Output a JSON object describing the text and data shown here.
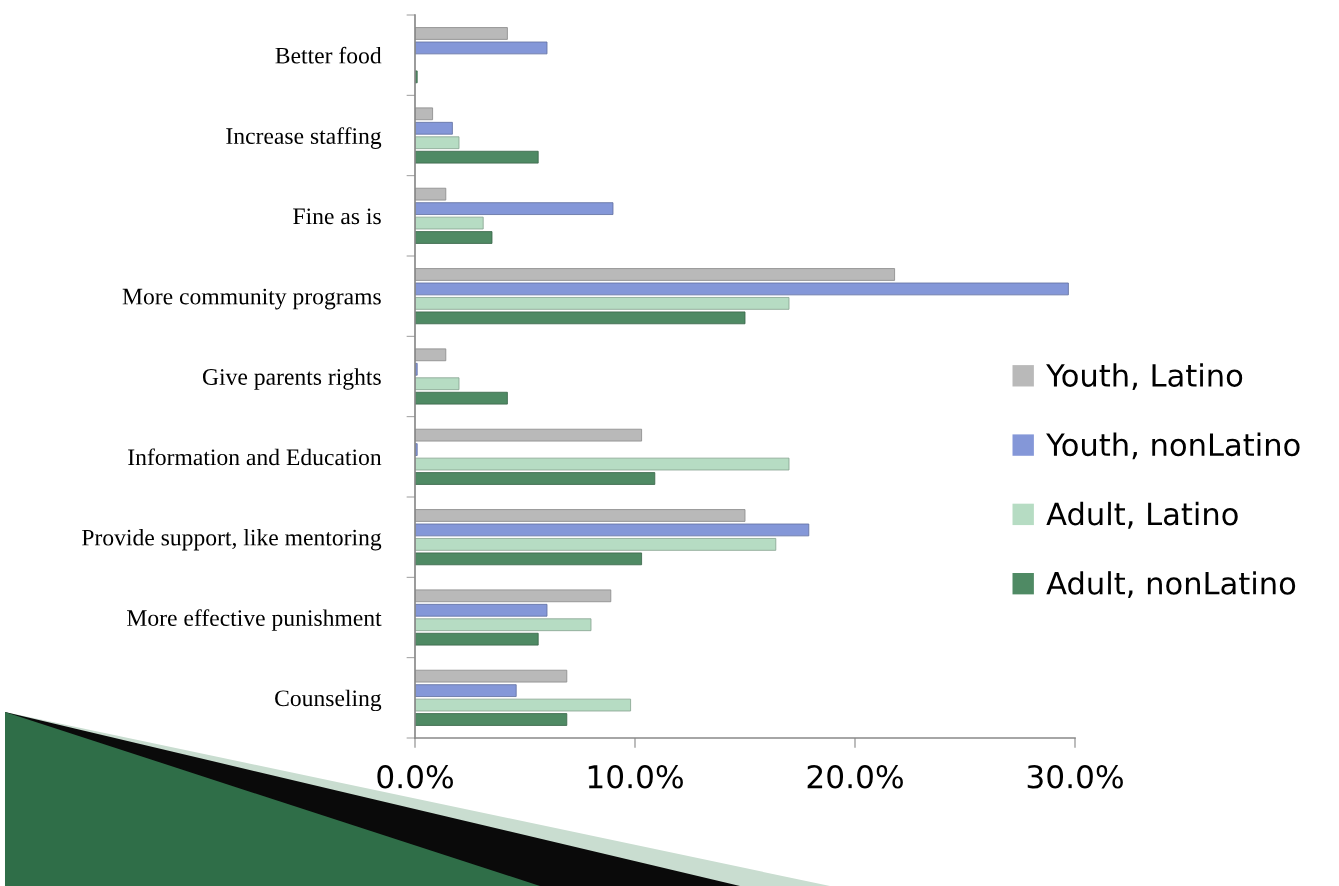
{
  "chart_data": {
    "type": "bar",
    "orientation": "horizontal",
    "categories": [
      "Better food",
      "Increase staffing",
      "Fine as is",
      "More community programs",
      "Give parents rights",
      "Information and Education",
      "Provide support, like mentoring",
      "More effective punishment",
      "Counseling"
    ],
    "series": [
      {
        "name": "Youth, Latino",
        "color": "#b9b9b9",
        "values": [
          4.2,
          0.8,
          1.4,
          21.8,
          1.4,
          10.3,
          15.0,
          8.9,
          6.9
        ]
      },
      {
        "name": "Youth, nonLatino",
        "color": "#8497d8",
        "values": [
          6.0,
          1.7,
          9.0,
          29.7,
          0.1,
          0.1,
          17.9,
          6.0,
          4.6
        ]
      },
      {
        "name": "Adult, Latino",
        "color": "#b6dcc3",
        "values": [
          null,
          2.0,
          3.1,
          17.0,
          2.0,
          17.0,
          16.4,
          8.0,
          9.8
        ]
      },
      {
        "name": "Adult, nonLatino",
        "color": "#4f8a64",
        "values": [
          0.1,
          5.6,
          3.5,
          15.0,
          4.2,
          10.9,
          10.3,
          5.6,
          6.9
        ]
      }
    ],
    "xlim": [
      0,
      30
    ],
    "xticks": [
      {
        "value": 0,
        "label": "0.0%"
      },
      {
        "value": 10,
        "label": "10.0%"
      },
      {
        "value": 20,
        "label": "20.0%"
      },
      {
        "value": 30,
        "label": "30.0%"
      }
    ],
    "legend": "right"
  }
}
